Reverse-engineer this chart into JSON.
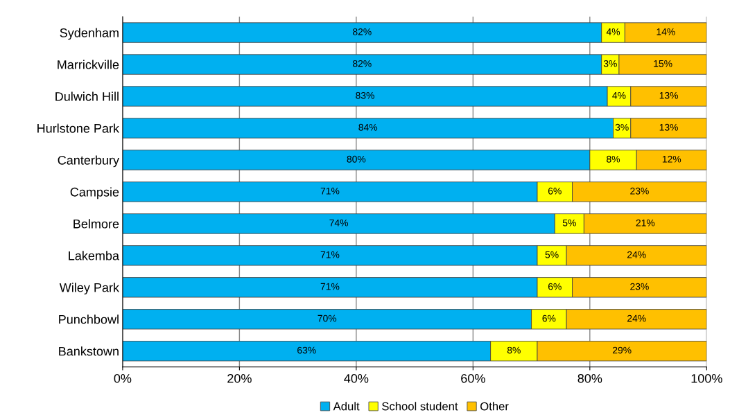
{
  "chart_data": {
    "type": "bar",
    "orientation": "horizontal",
    "stacked": true,
    "categories": [
      "Sydenham",
      "Marrickville",
      "Dulwich Hill",
      "Hurlstone Park",
      "Canterbury",
      "Campsie",
      "Belmore",
      "Lakemba",
      "Wiley Park",
      "Punchbowl",
      "Bankstown"
    ],
    "series": [
      {
        "name": "Adult",
        "color": "#00b0f0",
        "values": [
          82,
          82,
          83,
          84,
          80,
          71,
          74,
          71,
          71,
          70,
          63
        ],
        "value_labels": [
          "82%",
          "82%",
          "83%",
          "84%",
          "80%",
          "71%",
          "74%",
          "71%",
          "71%",
          "70%",
          "63%"
        ]
      },
      {
        "name": "School student",
        "color": "#ffff00",
        "values": [
          4,
          3,
          4,
          3,
          8,
          6,
          5,
          5,
          6,
          6,
          8
        ],
        "value_labels": [
          "4%",
          "3%",
          "4%",
          "3%",
          "8%",
          "6%",
          "5%",
          "5%",
          "6%",
          "6%",
          "8%"
        ]
      },
      {
        "name": "Other",
        "color": "#ffc000",
        "values": [
          14,
          15,
          13,
          13,
          12,
          23,
          21,
          24,
          23,
          24,
          29
        ],
        "value_labels": [
          "14%",
          "15%",
          "13%",
          "13%",
          "12%",
          "23%",
          "21%",
          "24%",
          "23%",
          "24%",
          "29%"
        ]
      }
    ],
    "xlim": [
      0,
      100
    ],
    "xticks": [
      {
        "value": 0,
        "label": "0%"
      },
      {
        "value": 20,
        "label": "20%"
      },
      {
        "value": 40,
        "label": "40%"
      },
      {
        "value": 60,
        "label": "60%"
      },
      {
        "value": 80,
        "label": "80%"
      },
      {
        "value": 100,
        "label": "100%"
      }
    ],
    "grid": "x",
    "legend": "bottom"
  }
}
